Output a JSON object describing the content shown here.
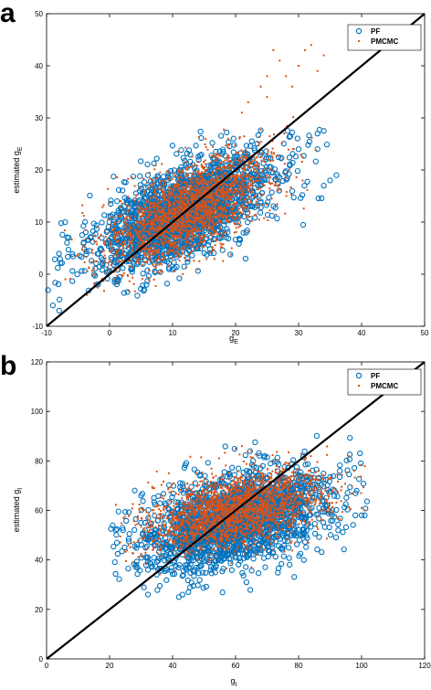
{
  "colors": {
    "pf": "#0072BD",
    "pmcmc": "#D95319",
    "identity": "#000000"
  },
  "chart_data": [
    {
      "type": "scatter",
      "panel": "a",
      "xlabel": "g",
      "xlabel_sub": "E",
      "ylabel": "estimated g",
      "ylabel_sub": "E",
      "xlim": [
        -10,
        50
      ],
      "ylim": [
        -10,
        50
      ],
      "xticks": [
        -10,
        0,
        10,
        20,
        30,
        40,
        50
      ],
      "yticks": [
        -10,
        0,
        10,
        20,
        30,
        40,
        50
      ],
      "legend": [
        "PF",
        "PMCMC"
      ],
      "legend_position": "top-right",
      "identity_line": [
        [
          -10,
          -10
        ],
        [
          50,
          50
        ]
      ],
      "series": [
        {
          "name": "PF",
          "marker": "circle",
          "n": 2200,
          "mean": [
            12,
            12
          ],
          "std": [
            7,
            5.5
          ],
          "corr": 0.62,
          "xrange": [
            -10,
            37
          ],
          "yrange": [
            -9,
            28
          ],
          "extra": [
            [
              33,
              27
            ],
            [
              34,
              27.5
            ],
            [
              35,
              18
            ],
            [
              36,
              19
            ],
            [
              34,
              17
            ],
            [
              33,
              24
            ],
            [
              30,
              24
            ],
            [
              -9,
              -6
            ],
            [
              -8,
              -7
            ]
          ]
        },
        {
          "name": "PMCMC",
          "marker": "dot",
          "n": 2400,
          "mean": [
            12,
            12
          ],
          "std": [
            6.5,
            5.5
          ],
          "corr": 0.62,
          "xrange": [
            -8,
            35
          ],
          "yrange": [
            -6,
            44
          ],
          "extra": [
            [
              24,
              36
            ],
            [
              25,
              38
            ],
            [
              26,
              43
            ],
            [
              27,
              41
            ],
            [
              28,
              38
            ],
            [
              30,
              40
            ],
            [
              31,
              43
            ],
            [
              32,
              44
            ],
            [
              25,
              34
            ],
            [
              22,
              33
            ],
            [
              29,
              36
            ],
            [
              33,
              39
            ],
            [
              34,
              42
            ],
            [
              21,
              31
            ]
          ]
        }
      ]
    },
    {
      "type": "scatter",
      "panel": "b",
      "xlabel": "g",
      "xlabel_sub": "I",
      "ylabel": "estimated g",
      "ylabel_sub": "I",
      "xlim": [
        0,
        120
      ],
      "ylim": [
        0,
        120
      ],
      "xticks": [
        0,
        20,
        40,
        60,
        80,
        100,
        120
      ],
      "yticks": [
        0,
        20,
        40,
        60,
        80,
        100,
        120
      ],
      "legend": [
        "PF",
        "PMCMC"
      ],
      "legend_position": "top-right",
      "identity_line": [
        [
          0,
          0
        ],
        [
          120,
          120
        ]
      ],
      "series": [
        {
          "name": "PF",
          "marker": "circle",
          "n": 2200,
          "mean": [
            60,
            56
          ],
          "std": [
            15,
            10
          ],
          "corr": 0.45,
          "xrange": [
            20,
            102
          ],
          "yrange": [
            25,
            93
          ],
          "extra": [
            [
              21,
              54
            ],
            [
              22,
              52
            ],
            [
              28,
              68
            ],
            [
              30,
              66
            ],
            [
              100,
              58
            ],
            [
              101,
              58
            ],
            [
              98,
              58
            ],
            [
              45,
              27
            ],
            [
              42,
              25
            ]
          ]
        },
        {
          "name": "PMCMC",
          "marker": "dot",
          "n": 2400,
          "mean": [
            60,
            60
          ],
          "std": [
            14,
            8
          ],
          "corr": 0.45,
          "xrange": [
            22,
            102
          ],
          "yrange": [
            34,
            86
          ],
          "extra": [
            [
              60,
              85
            ],
            [
              62,
              86
            ],
            [
              65,
              84
            ],
            [
              100,
              61
            ],
            [
              101,
              60
            ]
          ]
        }
      ]
    }
  ]
}
